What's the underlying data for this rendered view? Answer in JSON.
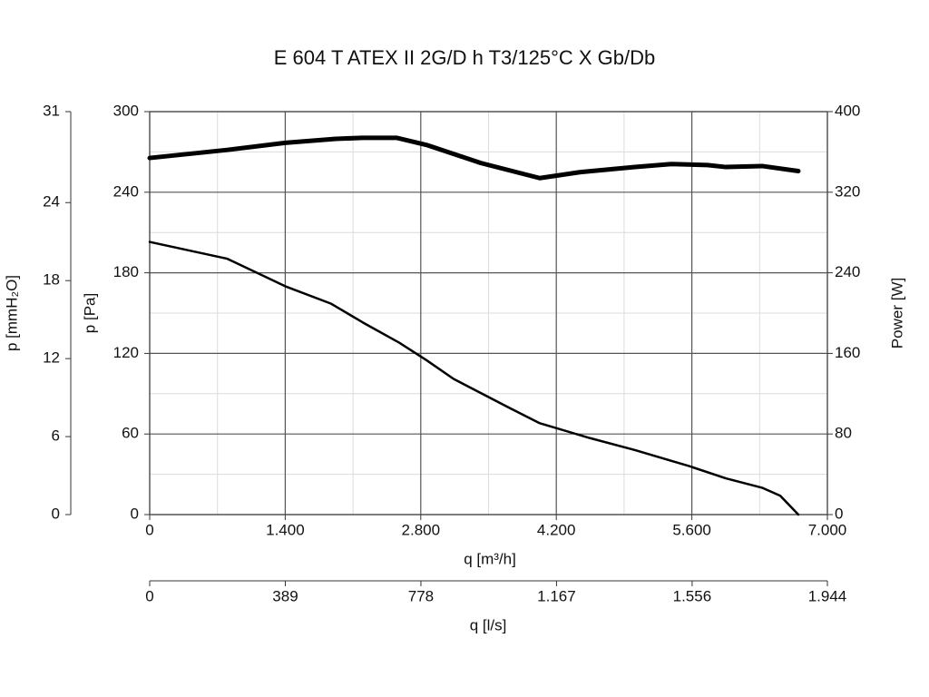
{
  "chart_data": {
    "type": "line",
    "title": "E 604 T ATEX II 2G/D h T3/125°C X Gb/Db",
    "x_label": "q [m³/h]",
    "x2_label": "q [l/s]",
    "y_label": "p [Pa]",
    "y2_label": "Power [W]",
    "y3_label": "p [mmH₂O]",
    "xlim": [
      0,
      7000
    ],
    "xticks": [
      0,
      {
        "value": 1400,
        "label": "1.400"
      },
      {
        "value": 2800,
        "label": "2.800"
      },
      {
        "value": 4200,
        "label": "4.200"
      },
      {
        "value": 5600,
        "label": "5.600"
      },
      {
        "value": 7000,
        "label": "7.000"
      }
    ],
    "x2lim": [
      0,
      1944
    ],
    "x2ticks": [
      0,
      389,
      778,
      {
        "value": 1167,
        "label": "1.167"
      },
      {
        "value": 1556,
        "label": "1.556"
      },
      {
        "value": 1944,
        "label": "1.944"
      }
    ],
    "ylim": [
      0,
      300
    ],
    "yticks": [
      0,
      60,
      120,
      180,
      240,
      300
    ],
    "y2lim": [
      0,
      400
    ],
    "y2ticks": [
      0,
      80,
      160,
      240,
      320,
      400
    ],
    "y3lim": [
      0,
      31
    ],
    "y3ticks": [
      0,
      6,
      12,
      18,
      24,
      31
    ],
    "xminor": [
      700,
      2100,
      3500,
      4900,
      6300
    ],
    "yminor": [
      30,
      90,
      150,
      210,
      270
    ],
    "grid": true,
    "series": [
      {
        "axis": "y",
        "color": "#000000",
        "x": [
          0,
          800,
          1400,
          1874,
          2202,
          2577,
          2858,
          3139,
          3701,
          4029,
          4545,
          5013,
          5576,
          5951,
          6325,
          6513,
          6700
        ],
        "values": [
          203,
          190.5,
          170,
          157,
          143,
          128,
          115,
          101,
          80,
          68,
          57,
          48,
          36,
          27,
          20,
          14,
          0
        ]
      },
      {
        "axis": "y2",
        "color": "#000000",
        "x": [
          0,
          800,
          1400,
          1921,
          2202,
          2549,
          2858,
          3420,
          4029,
          4451,
          5013,
          5388,
          5763,
          5951,
          6325,
          6700
        ],
        "values": [
          354,
          362,
          369,
          373,
          374,
          374,
          367,
          349,
          334,
          340,
          345,
          348,
          347,
          345,
          346,
          341
        ]
      }
    ]
  }
}
